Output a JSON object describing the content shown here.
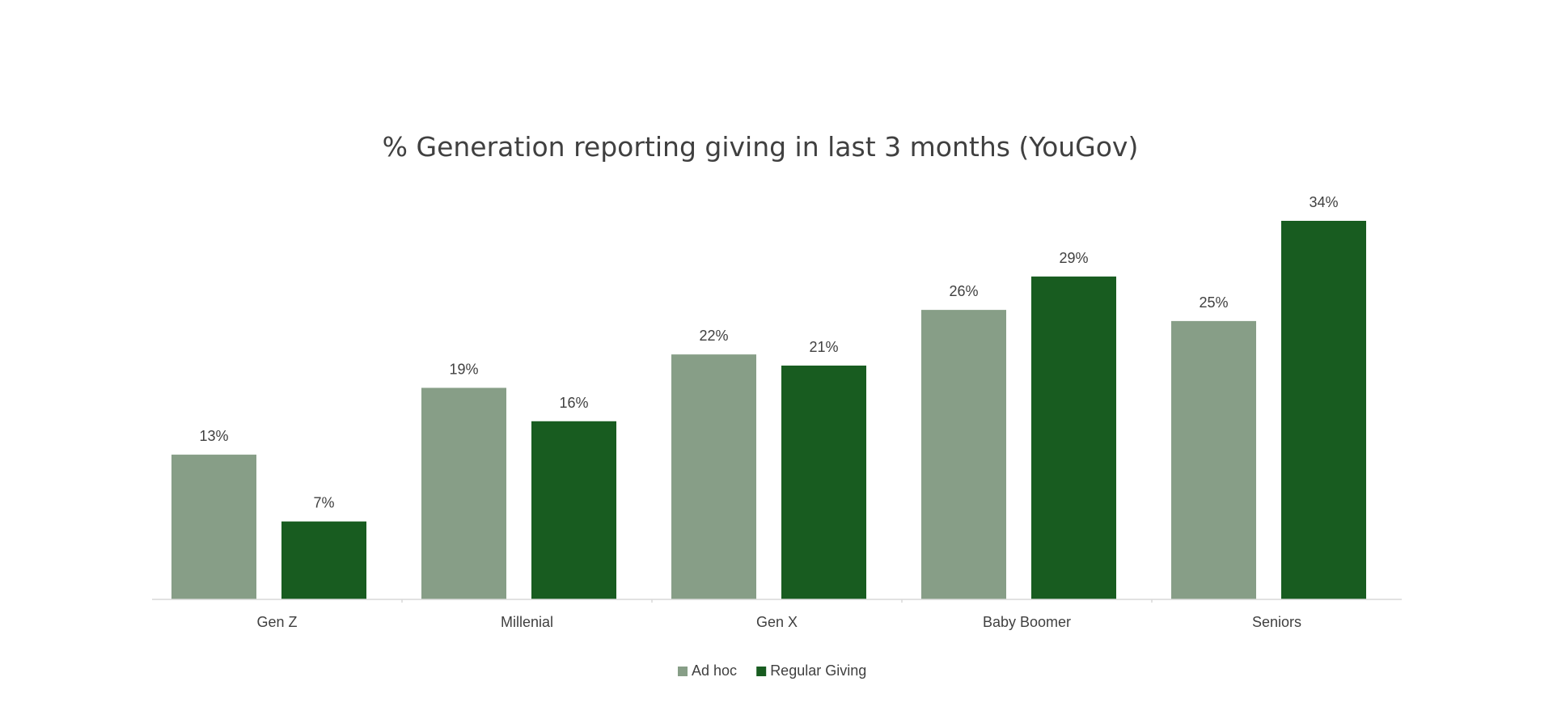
{
  "chart_data": {
    "type": "bar",
    "title": "% Generation reporting giving in last 3 months (YouGov)",
    "categories": [
      "Gen Z",
      "Millenial",
      "Gen X",
      "Baby Boomer",
      "Seniors"
    ],
    "series": [
      {
        "name": "Ad hoc",
        "color": "#879e87",
        "values": [
          13,
          19,
          22,
          26,
          25
        ],
        "labels": [
          "13%",
          "19%",
          "22%",
          "26%",
          "25%"
        ]
      },
      {
        "name": "Regular Giving",
        "color": "#185c20",
        "values": [
          7,
          16,
          21,
          29,
          34
        ],
        "labels": [
          "7%",
          "16%",
          "21%",
          "29%",
          "34%"
        ]
      }
    ],
    "ylim": [
      0,
      34
    ],
    "grid": false,
    "legend": "bottom-center",
    "axis_color": "#d9d9d9",
    "text_color": "#404040"
  }
}
